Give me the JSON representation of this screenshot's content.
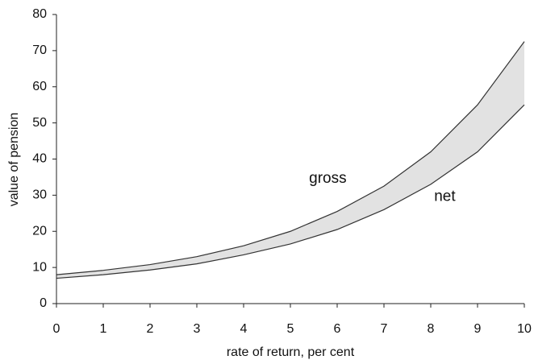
{
  "chart_data": {
    "type": "line",
    "x": [
      0,
      1,
      2,
      3,
      4,
      5,
      6,
      7,
      8,
      9,
      10
    ],
    "series": [
      {
        "name": "gross",
        "color": "#333333",
        "values": [
          8,
          9.2,
          10.8,
          13,
          16,
          20,
          25.5,
          32.5,
          42,
          55,
          72.5
        ]
      },
      {
        "name": "net",
        "color": "#333333",
        "values": [
          7,
          8,
          9.3,
          11,
          13.5,
          16.5,
          20.5,
          26,
          33,
          42,
          55
        ]
      }
    ],
    "fill_between_color": "#e2e2e2",
    "xlabel": "rate of return, per cent",
    "ylabel": "value of pension",
    "xlim": [
      0,
      10
    ],
    "xticks": [
      0,
      1,
      2,
      3,
      4,
      5,
      6,
      7,
      8,
      9,
      10
    ],
    "ylim": [
      0,
      80
    ],
    "yticks": [
      0,
      10,
      20,
      30,
      40,
      50,
      60,
      70,
      80
    ],
    "annotations": [
      {
        "text": "gross",
        "x": 5.8,
        "y": 34.5
      },
      {
        "text": "net",
        "x": 8.3,
        "y": 29.5
      }
    ]
  }
}
